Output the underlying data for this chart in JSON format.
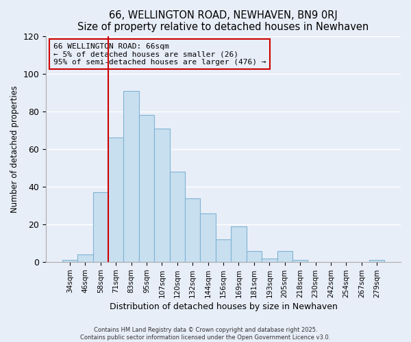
{
  "title": "66, WELLINGTON ROAD, NEWHAVEN, BN9 0RJ",
  "subtitle": "Size of property relative to detached houses in Newhaven",
  "xlabel": "Distribution of detached houses by size in Newhaven",
  "ylabel": "Number of detached properties",
  "bar_labels": [
    "34sqm",
    "46sqm",
    "58sqm",
    "71sqm",
    "83sqm",
    "95sqm",
    "107sqm",
    "120sqm",
    "132sqm",
    "144sqm",
    "156sqm",
    "169sqm",
    "181sqm",
    "193sqm",
    "205sqm",
    "218sqm",
    "230sqm",
    "242sqm",
    "254sqm",
    "267sqm",
    "279sqm"
  ],
  "bar_values": [
    1,
    4,
    37,
    66,
    91,
    78,
    71,
    48,
    34,
    26,
    12,
    19,
    6,
    2,
    6,
    1,
    0,
    0,
    0,
    0,
    1
  ],
  "bar_color": "#c8dff0",
  "bar_edge_color": "#7fb3d3",
  "vline_color": "#cc0000",
  "ylim": [
    0,
    120
  ],
  "yticks": [
    0,
    20,
    40,
    60,
    80,
    100,
    120
  ],
  "annotation_title": "66 WELLINGTON ROAD: 66sqm",
  "annotation_line1": "← 5% of detached houses are smaller (26)",
  "annotation_line2": "95% of semi-detached houses are larger (476) →",
  "annotation_box_color": "#cc0000",
  "footer_line1": "Contains HM Land Registry data © Crown copyright and database right 2025.",
  "footer_line2": "Contains public sector information licensed under the Open Government Licence v3.0.",
  "background_color": "#e8eef8",
  "grid_color": "#ffffff"
}
